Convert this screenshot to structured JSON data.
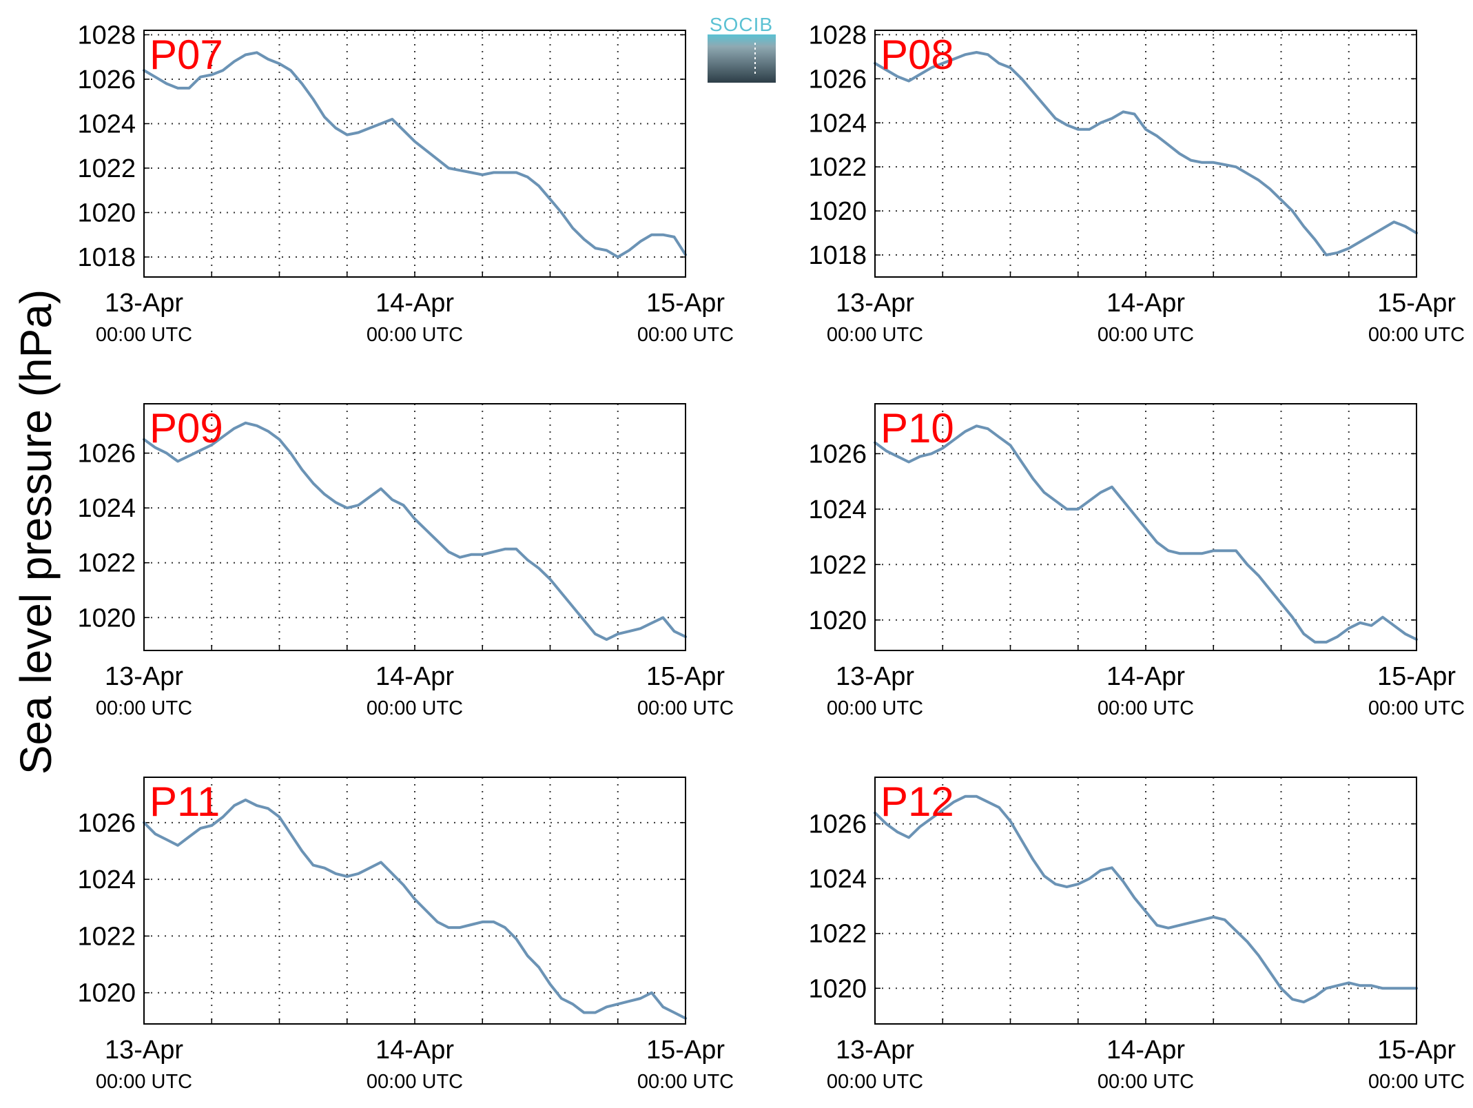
{
  "ylabel": "Sea level pressure (hPa)",
  "logo": {
    "text": "SOCIB"
  },
  "colors": {
    "line": "#6b93b5",
    "title": "#ff0000",
    "grid": "#333333",
    "logo_top": "#5bc1d3",
    "logo_bottom": "#2d3e48"
  },
  "x_ticks": [
    {
      "date": "13-Apr",
      "time": "00:00 UTC"
    },
    {
      "date": "14-Apr",
      "time": "00:00 UTC"
    },
    {
      "date": "15-Apr",
      "time": "00:00 UTC"
    }
  ],
  "chart_data": [
    {
      "type": "line",
      "title": "P07",
      "ylim": [
        1017.1,
        1028.2
      ],
      "yticks": [
        1018,
        1020,
        1022,
        1024,
        1026,
        1028
      ],
      "x_range": [
        "2015-04-13 00:00",
        "2015-04-15 00:00"
      ],
      "grid": true,
      "hours": [
        0,
        1,
        2,
        3,
        4,
        5,
        6,
        7,
        8,
        9,
        10,
        11,
        12,
        13,
        14,
        15,
        16,
        17,
        18,
        19,
        20,
        21,
        22,
        23,
        24,
        25,
        26,
        27,
        28,
        29,
        30,
        31,
        32,
        33,
        34,
        35,
        36,
        37,
        38,
        39,
        40,
        41,
        42,
        43,
        44,
        45,
        46,
        47,
        48
      ],
      "values": [
        1026.4,
        1026.1,
        1025.8,
        1025.6,
        1025.6,
        1026.1,
        1026.2,
        1026.4,
        1026.8,
        1027.1,
        1027.2,
        1026.9,
        1026.7,
        1026.4,
        1025.8,
        1025.1,
        1024.3,
        1023.8,
        1023.5,
        1023.6,
        1023.8,
        1024.0,
        1024.2,
        1023.7,
        1023.2,
        1022.8,
        1022.4,
        1022.0,
        1021.9,
        1021.8,
        1021.7,
        1021.8,
        1021.8,
        1021.8,
        1021.6,
        1021.2,
        1020.6,
        1020.0,
        1019.3,
        1018.8,
        1018.4,
        1018.3,
        1018.0,
        1018.3,
        1018.7,
        1019.0,
        1019.0,
        1018.9,
        1018.1
      ]
    },
    {
      "type": "line",
      "title": "P08",
      "ylim": [
        1017.0,
        1028.2
      ],
      "yticks": [
        1018,
        1020,
        1022,
        1024,
        1026,
        1028
      ],
      "x_range": [
        "2015-04-13 00:00",
        "2015-04-15 00:00"
      ],
      "grid": true,
      "hours": [
        0,
        1,
        2,
        3,
        4,
        5,
        6,
        7,
        8,
        9,
        10,
        11,
        12,
        13,
        14,
        15,
        16,
        17,
        18,
        19,
        20,
        21,
        22,
        23,
        24,
        25,
        26,
        27,
        28,
        29,
        30,
        31,
        32,
        33,
        34,
        35,
        36,
        37,
        38,
        39,
        40,
        41,
        42,
        43,
        44,
        45,
        46,
        47,
        48
      ],
      "values": [
        1026.7,
        1026.4,
        1026.1,
        1025.9,
        1026.2,
        1026.5,
        1026.7,
        1026.9,
        1027.1,
        1027.2,
        1027.1,
        1026.7,
        1026.5,
        1026.0,
        1025.4,
        1024.8,
        1024.2,
        1023.9,
        1023.7,
        1023.7,
        1024.0,
        1024.2,
        1024.5,
        1024.4,
        1023.7,
        1023.4,
        1023.0,
        1022.6,
        1022.3,
        1022.2,
        1022.2,
        1022.1,
        1022.0,
        1021.7,
        1021.4,
        1021.0,
        1020.5,
        1020.0,
        1019.3,
        1018.7,
        1018.0,
        1018.1,
        1018.3,
        1018.6,
        1018.9,
        1019.2,
        1019.5,
        1019.3,
        1019.0
      ]
    },
    {
      "type": "line",
      "title": "P09",
      "ylim": [
        1018.8,
        1027.8
      ],
      "yticks": [
        1020,
        1022,
        1024,
        1026
      ],
      "x_range": [
        "2015-04-13 00:00",
        "2015-04-15 00:00"
      ],
      "grid": true,
      "hours": [
        0,
        1,
        2,
        3,
        4,
        5,
        6,
        7,
        8,
        9,
        10,
        11,
        12,
        13,
        14,
        15,
        16,
        17,
        18,
        19,
        20,
        21,
        22,
        23,
        24,
        25,
        26,
        27,
        28,
        29,
        30,
        31,
        32,
        33,
        34,
        35,
        36,
        37,
        38,
        39,
        40,
        41,
        42,
        43,
        44,
        45,
        46,
        47,
        48
      ],
      "values": [
        1026.5,
        1026.2,
        1026.0,
        1025.7,
        1025.9,
        1026.1,
        1026.3,
        1026.6,
        1026.9,
        1027.1,
        1027.0,
        1026.8,
        1026.5,
        1026.0,
        1025.4,
        1024.9,
        1024.5,
        1024.2,
        1024.0,
        1024.1,
        1024.4,
        1024.7,
        1024.3,
        1024.1,
        1023.6,
        1023.2,
        1022.8,
        1022.4,
        1022.2,
        1022.3,
        1022.3,
        1022.4,
        1022.5,
        1022.5,
        1022.1,
        1021.8,
        1021.4,
        1020.9,
        1020.4,
        1019.9,
        1019.4,
        1019.2,
        1019.4,
        1019.5,
        1019.6,
        1019.8,
        1020.0,
        1019.5,
        1019.3
      ]
    },
    {
      "type": "line",
      "title": "P10",
      "ylim": [
        1018.9,
        1027.8
      ],
      "yticks": [
        1020,
        1022,
        1024,
        1026
      ],
      "x_range": [
        "2015-04-13 00:00",
        "2015-04-15 00:00"
      ],
      "grid": true,
      "hours": [
        0,
        1,
        2,
        3,
        4,
        5,
        6,
        7,
        8,
        9,
        10,
        11,
        12,
        13,
        14,
        15,
        16,
        17,
        18,
        19,
        20,
        21,
        22,
        23,
        24,
        25,
        26,
        27,
        28,
        29,
        30,
        31,
        32,
        33,
        34,
        35,
        36,
        37,
        38,
        39,
        40,
        41,
        42,
        43,
        44,
        45,
        46,
        47,
        48
      ],
      "values": [
        1026.4,
        1026.1,
        1025.9,
        1025.7,
        1025.9,
        1026.0,
        1026.2,
        1026.5,
        1026.8,
        1027.0,
        1026.9,
        1026.6,
        1026.3,
        1025.7,
        1025.1,
        1024.6,
        1024.3,
        1024.0,
        1024.0,
        1024.3,
        1024.6,
        1024.8,
        1024.3,
        1023.8,
        1023.3,
        1022.8,
        1022.5,
        1022.4,
        1022.4,
        1022.4,
        1022.5,
        1022.5,
        1022.5,
        1022.0,
        1021.6,
        1021.1,
        1020.6,
        1020.1,
        1019.5,
        1019.2,
        1019.2,
        1019.4,
        1019.7,
        1019.9,
        1019.8,
        1020.1,
        1019.8,
        1019.5,
        1019.3
      ]
    },
    {
      "type": "line",
      "title": "P11",
      "ylim": [
        1018.9,
        1027.6
      ],
      "yticks": [
        1020,
        1022,
        1024,
        1026
      ],
      "x_range": [
        "2015-04-13 00:00",
        "2015-04-15 00:00"
      ],
      "grid": true,
      "hours": [
        0,
        1,
        2,
        3,
        4,
        5,
        6,
        7,
        8,
        9,
        10,
        11,
        12,
        13,
        14,
        15,
        16,
        17,
        18,
        19,
        20,
        21,
        22,
        23,
        24,
        25,
        26,
        27,
        28,
        29,
        30,
        31,
        32,
        33,
        34,
        35,
        36,
        37,
        38,
        39,
        40,
        41,
        42,
        43,
        44,
        45,
        46,
        47,
        48
      ],
      "values": [
        1026.0,
        1025.6,
        1025.4,
        1025.2,
        1025.5,
        1025.8,
        1025.9,
        1026.2,
        1026.6,
        1026.8,
        1026.6,
        1026.5,
        1026.2,
        1025.6,
        1025.0,
        1024.5,
        1024.4,
        1024.2,
        1024.1,
        1024.2,
        1024.4,
        1024.6,
        1024.2,
        1023.8,
        1023.3,
        1022.9,
        1022.5,
        1022.3,
        1022.3,
        1022.4,
        1022.5,
        1022.5,
        1022.3,
        1021.9,
        1021.3,
        1020.9,
        1020.3,
        1019.8,
        1019.6,
        1019.3,
        1019.3,
        1019.5,
        1019.6,
        1019.7,
        1019.8,
        1020.0,
        1019.5,
        1019.3,
        1019.1
      ]
    },
    {
      "type": "line",
      "title": "P12",
      "ylim": [
        1018.7,
        1027.7
      ],
      "yticks": [
        1020,
        1022,
        1024,
        1026
      ],
      "x_range": [
        "2015-04-13 00:00",
        "2015-04-15 00:00"
      ],
      "grid": true,
      "hours": [
        0,
        1,
        2,
        3,
        4,
        5,
        6,
        7,
        8,
        9,
        10,
        11,
        12,
        13,
        14,
        15,
        16,
        17,
        18,
        19,
        20,
        21,
        22,
        23,
        24,
        25,
        26,
        27,
        28,
        29,
        30,
        31,
        32,
        33,
        34,
        35,
        36,
        37,
        38,
        39,
        40,
        41,
        42,
        43,
        44,
        45,
        46,
        47,
        48
      ],
      "values": [
        1026.4,
        1026.0,
        1025.7,
        1025.5,
        1025.9,
        1026.2,
        1026.5,
        1026.8,
        1027.0,
        1027.0,
        1026.8,
        1026.6,
        1026.1,
        1025.4,
        1024.7,
        1024.1,
        1023.8,
        1023.7,
        1023.8,
        1024.0,
        1024.3,
        1024.4,
        1023.9,
        1023.3,
        1022.8,
        1022.3,
        1022.2,
        1022.3,
        1022.4,
        1022.5,
        1022.6,
        1022.5,
        1022.1,
        1021.7,
        1021.2,
        1020.6,
        1020.0,
        1019.6,
        1019.5,
        1019.7,
        1020.0,
        1020.1,
        1020.2,
        1020.1,
        1020.1,
        1020.0,
        1020.0,
        1020.0,
        1020.0
      ]
    }
  ]
}
